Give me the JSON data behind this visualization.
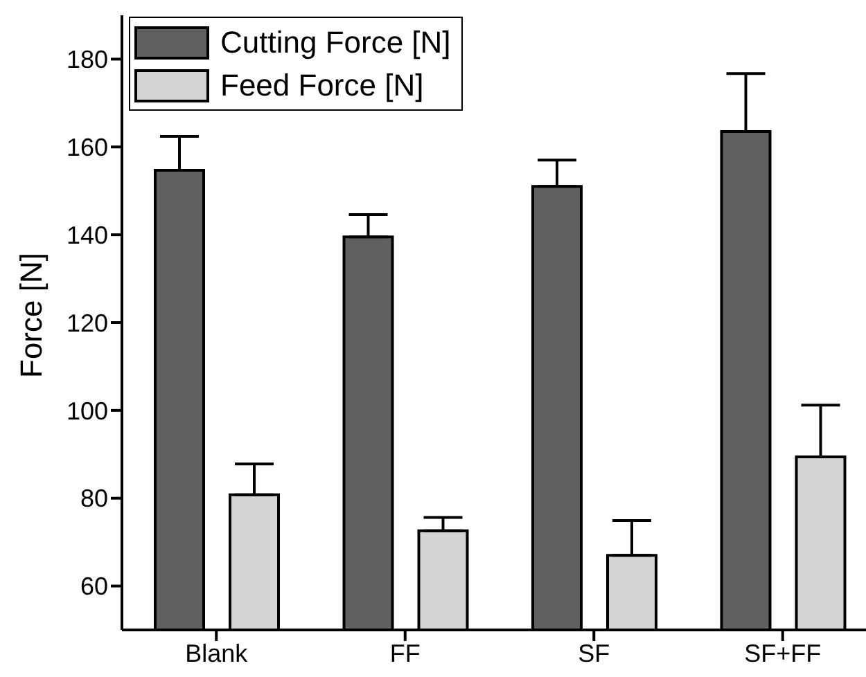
{
  "chart_data": {
    "type": "bar",
    "ylabel": "Force [N]",
    "categories": [
      "Blank",
      "FF",
      "SF",
      "SF+FF"
    ],
    "series": [
      {
        "name": "Cutting Force [N]",
        "color": "#606060",
        "values": [
          154.7,
          139.5,
          151,
          163.5
        ],
        "errors": [
          [
            154.7,
            162.4
          ],
          [
            139.5,
            144.6
          ],
          [
            151,
            157
          ],
          [
            163.5,
            176.7
          ]
        ]
      },
      {
        "name": "Feed Force [N]",
        "color": "#d3d4d3",
        "values": [
          80.8,
          72.6,
          67,
          89.4
        ],
        "errors": [
          [
            80.8,
            87.8
          ],
          [
            72.6,
            75.6
          ],
          [
            67,
            74.9
          ],
          [
            89.4,
            101.2
          ]
        ]
      }
    ],
    "ylim": [
      50,
      190
    ],
    "yticks": [
      60,
      80,
      100,
      120,
      140,
      160,
      180
    ],
    "grid": false,
    "legend": "top left"
  }
}
